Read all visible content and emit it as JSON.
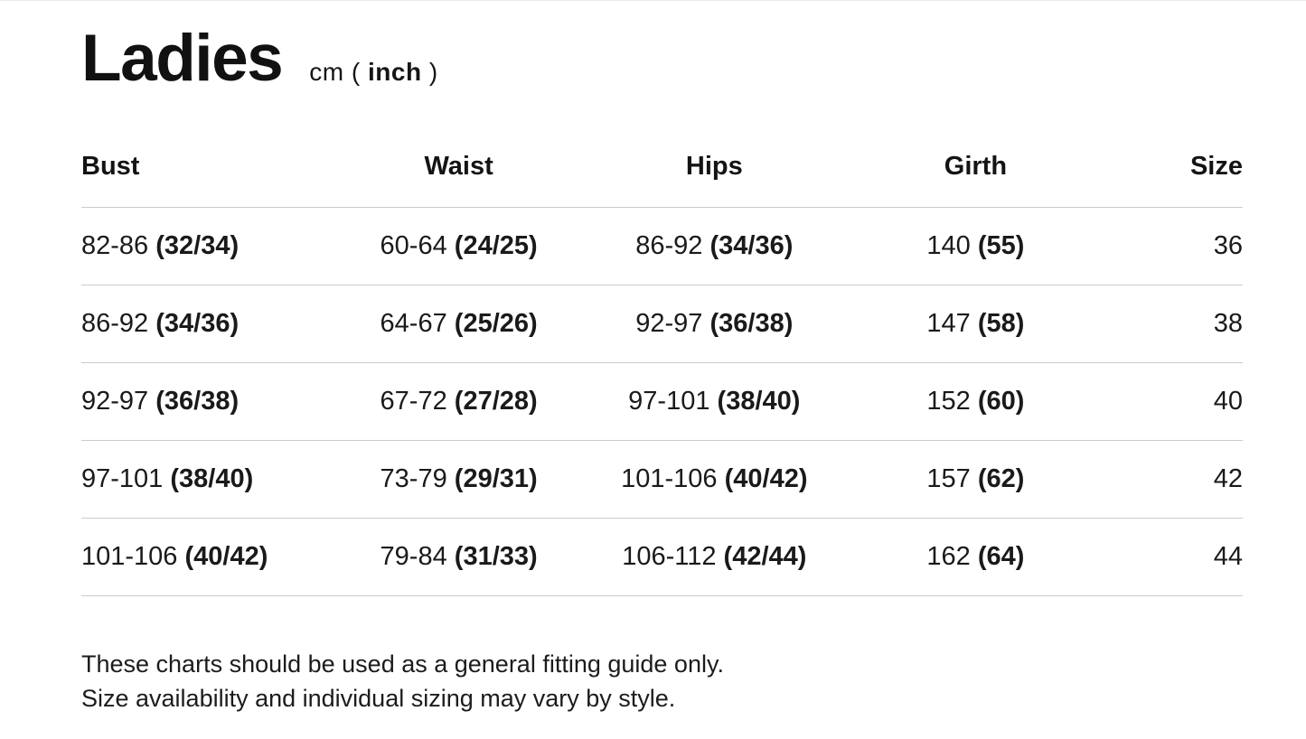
{
  "header": {
    "title": "Ladies",
    "unit_prefix": "cm ( ",
    "unit_inch": "inch",
    "unit_suffix": " )"
  },
  "table": {
    "columns": [
      "Bust",
      "Waist",
      "Hips",
      "Girth",
      "Size"
    ],
    "rows": [
      {
        "bust_cm": "82-86",
        "bust_in": "(32/34)",
        "waist_cm": "60-64",
        "waist_in": "(24/25)",
        "hips_cm": "86-92",
        "hips_in": "(34/36)",
        "girth_cm": "140",
        "girth_in": "(55)",
        "size": "36"
      },
      {
        "bust_cm": "86-92",
        "bust_in": "(34/36)",
        "waist_cm": "64-67",
        "waist_in": "(25/26)",
        "hips_cm": "92-97",
        "hips_in": "(36/38)",
        "girth_cm": "147",
        "girth_in": "(58)",
        "size": "38"
      },
      {
        "bust_cm": "92-97",
        "bust_in": "(36/38)",
        "waist_cm": "67-72",
        "waist_in": "(27/28)",
        "hips_cm": "97-101",
        "hips_in": "(38/40)",
        "girth_cm": "152",
        "girth_in": "(60)",
        "size": "40"
      },
      {
        "bust_cm": "97-101",
        "bust_in": "(38/40)",
        "waist_cm": "73-79",
        "waist_in": "(29/31)",
        "hips_cm": "101-106",
        "hips_in": "(40/42)",
        "girth_cm": "157",
        "girth_in": "(62)",
        "size": "42"
      },
      {
        "bust_cm": "101-106",
        "bust_in": "(40/42)",
        "waist_cm": "79-84",
        "waist_in": "(31/33)",
        "hips_cm": "106-112",
        "hips_in": "(42/44)",
        "girth_cm": "162",
        "girth_in": "(64)",
        "size": "44"
      }
    ]
  },
  "footer": {
    "line1": "These charts should be used as a general fitting guide only.",
    "line2": "Size availability and individual sizing may vary by style."
  },
  "colors": {
    "text": "#161616",
    "divider": "#cbcbcb",
    "background": "#ffffff"
  },
  "chart_data": {
    "type": "table",
    "title": "Ladies cm ( inch )",
    "columns": [
      "Bust",
      "Waist",
      "Hips",
      "Girth",
      "Size"
    ],
    "rows": [
      [
        "82-86 (32/34)",
        "60-64 (24/25)",
        "86-92 (34/36)",
        "140 (55)",
        "36"
      ],
      [
        "86-92 (34/36)",
        "64-67 (25/26)",
        "92-97 (36/38)",
        "147 (58)",
        "38"
      ],
      [
        "92-97 (36/38)",
        "67-72 (27/28)",
        "97-101 (38/40)",
        "152 (60)",
        "40"
      ],
      [
        "97-101 (38/40)",
        "73-79 (29/31)",
        "101-106 (40/42)",
        "157 (62)",
        "42"
      ],
      [
        "101-106 (40/42)",
        "79-84 (31/33)",
        "106-112 (42/44)",
        "162 (64)",
        "44"
      ]
    ],
    "notes": [
      "These charts should be used as a general fitting guide only.",
      "Size availability and individual sizing may vary by style."
    ]
  }
}
